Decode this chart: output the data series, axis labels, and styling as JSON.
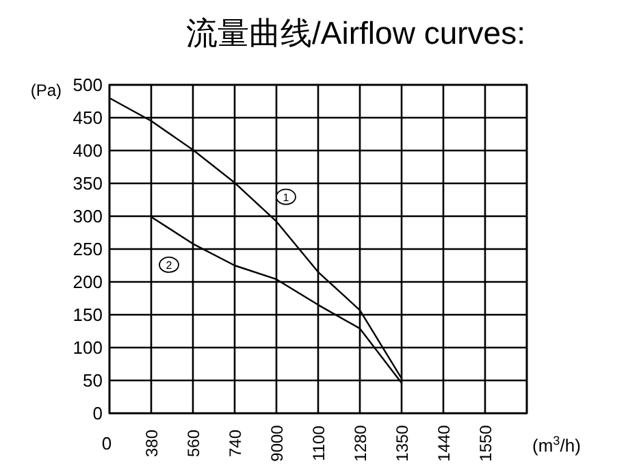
{
  "chart_data": {
    "type": "line",
    "title": "流量曲线/Airflow curves:",
    "ylabel": "(Pa)",
    "xlabel": "(m$^{3}$/h)",
    "categories": [
      "0",
      "380",
      "560",
      "740",
      "9000",
      "1100",
      "1280",
      "1350",
      "1440",
      "1550",
      null
    ],
    "ylim": [
      0,
      500
    ],
    "yticks": [
      0,
      50,
      100,
      150,
      200,
      250,
      300,
      350,
      400,
      450,
      500
    ],
    "grid": true,
    "marker": "none",
    "line_style": "solid",
    "series": [
      {
        "name": "1",
        "color": "#000000",
        "values": [
          480,
          445,
          401,
          351,
          292,
          215,
          157,
          53,
          null,
          null,
          null
        ]
      },
      {
        "name": "2",
        "color": "#000000",
        "values": [
          null,
          299,
          258,
          225,
          204,
          165,
          129,
          46,
          null,
          null,
          null
        ]
      }
    ]
  }
}
